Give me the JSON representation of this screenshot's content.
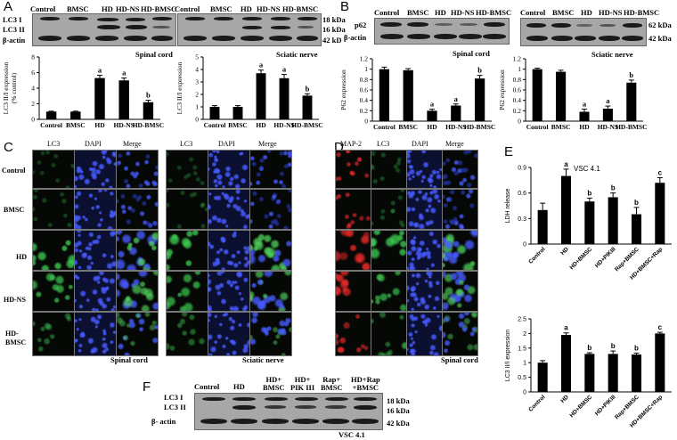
{
  "panel_labels": [
    "A",
    "B",
    "C",
    "D",
    "E",
    "F"
  ],
  "A": {
    "blot1": {
      "lanes": [
        "Control",
        "BMSC",
        "HD",
        "HD-NS",
        "HD-BMSC"
      ],
      "rows": [
        "LC3 I",
        "LC3 II",
        "β-actin"
      ],
      "caption": "Spinal cord"
    },
    "blot2": {
      "lanes": [
        "Control",
        "BMSC",
        "HD",
        "HD-NS",
        "HD-BMSC"
      ],
      "sizes": [
        "18 kDa",
        "16 kDa",
        "42 kD"
      ],
      "caption": "Sciatic nerve"
    }
  },
  "B": {
    "blot1": {
      "lanes": [
        "Control",
        "BMSC",
        "HD",
        "HD-NS",
        "HD-BMSC"
      ],
      "rows": [
        "p62",
        "β-actin"
      ],
      "caption": "Spinal cord"
    },
    "blot2": {
      "lanes": [
        "Control",
        "BMSC",
        "HD",
        "HD-NS",
        "HD-BMSC"
      ],
      "sizes": [
        "62 kDa",
        "42 kDa"
      ],
      "caption": "Sciatic nerve"
    }
  },
  "C": {
    "cols": [
      "LC3",
      "DAPI",
      "Merge"
    ],
    "rows": [
      "Control",
      "BMSC",
      "HD",
      "HD-NS",
      "HD-\nBMSC"
    ],
    "caption_left": "Spinal cord",
    "caption_right": "Sciatic nerve"
  },
  "D": {
    "cols": [
      "MAP-2",
      "LC3",
      "DAPI",
      "Merge"
    ],
    "caption": "Spinal cord"
  },
  "E": {
    "title": "VSC 4.1"
  },
  "F": {
    "lanes": [
      "Control",
      "HD",
      "HD+\nBMSC",
      "HD+\nPIK III",
      "Rap+\nBMSC",
      "HD+Rap\n+BMSC"
    ],
    "rows": [
      "LC3 I",
      "LC3 II",
      "β- actin"
    ],
    "sizes": [
      "18 kDa",
      "16 kDa",
      "42 kDa"
    ],
    "caption": "VSC 4.1"
  },
  "chart_data": [
    {
      "id": "A-spinal",
      "type": "bar",
      "categories": [
        "Control",
        "BMSC",
        "HD",
        "HD-NS",
        "HD-BMSC"
      ],
      "values": [
        1.0,
        1.0,
        5.3,
        5.0,
        2.2
      ],
      "errors": [
        0.05,
        0.05,
        0.35,
        0.3,
        0.25
      ],
      "sig": [
        "",
        "",
        "a",
        "a",
        "b"
      ],
      "ylabel": "LC3 II/I expression\n(% control)",
      "ylim": [
        0,
        8
      ],
      "yticks": [
        0,
        2,
        4,
        6,
        8
      ]
    },
    {
      "id": "A-sciatic",
      "type": "bar",
      "categories": [
        "Control",
        "BMSC",
        "HD",
        "HD-NS",
        "HD-BMSC"
      ],
      "values": [
        1.0,
        1.0,
        3.7,
        3.3,
        1.9
      ],
      "errors": [
        0.1,
        0.1,
        0.25,
        0.3,
        0.15
      ],
      "sig": [
        "",
        "",
        "a",
        "a",
        "b"
      ],
      "ylabel": "LC3 II/I expression",
      "ylim": [
        0,
        5
      ],
      "yticks": [
        0,
        1,
        2,
        3,
        4,
        5
      ]
    },
    {
      "id": "B-spinal",
      "type": "bar",
      "categories": [
        "Control",
        "BMSC",
        "HD",
        "HD-NS",
        "HD-BMSC"
      ],
      "values": [
        1.0,
        0.98,
        0.2,
        0.3,
        0.82
      ],
      "errors": [
        0.04,
        0.03,
        0.03,
        0.03,
        0.06
      ],
      "sig": [
        "",
        "",
        "a",
        "a",
        "b"
      ],
      "ylabel": "P62 expression",
      "ylim": [
        0,
        1.2
      ],
      "yticks": [
        0,
        0.2,
        0.4,
        0.6,
        0.8,
        1.0,
        1.2
      ]
    },
    {
      "id": "B-sciatic",
      "type": "bar",
      "categories": [
        "Control",
        "BMSC",
        "HD",
        "HD-NS",
        "HD-BMSC"
      ],
      "values": [
        1.0,
        0.95,
        0.18,
        0.24,
        0.74
      ],
      "errors": [
        0.02,
        0.03,
        0.05,
        0.05,
        0.05
      ],
      "sig": [
        "",
        "",
        "a",
        "a",
        "b"
      ],
      "ylabel": "P62 expression",
      "ylim": [
        0,
        1.2
      ],
      "yticks": [
        0,
        0.2,
        0.4,
        0.6,
        0.8,
        1.0,
        1.2
      ]
    },
    {
      "id": "E-LDH",
      "type": "bar",
      "categories": [
        "Control",
        "HD",
        "HD+BMSC",
        "HD+PIKIII",
        "Rap+BMSC",
        "HD+BMSC+Rap"
      ],
      "values": [
        0.4,
        0.8,
        0.5,
        0.55,
        0.35,
        0.72
      ],
      "errors": [
        0.08,
        0.08,
        0.04,
        0.05,
        0.08,
        0.06
      ],
      "sig": [
        "",
        "a",
        "b",
        "b",
        "b",
        "c"
      ],
      "ylabel": "LDH release",
      "ylim": [
        0,
        0.9
      ],
      "yticks": [
        0,
        0.3,
        0.6,
        0.9
      ]
    },
    {
      "id": "E-LC3",
      "type": "bar",
      "categories": [
        "Control",
        "HD",
        "HD+BMSC",
        "HD+PIKIII",
        "Rap+BMSC",
        "HD+BMSC+Rap"
      ],
      "values": [
        1.0,
        1.95,
        1.3,
        1.3,
        1.28,
        2.0
      ],
      "errors": [
        0.07,
        0.07,
        0.04,
        0.1,
        0.05,
        0.04
      ],
      "sig": [
        "",
        "a",
        "b",
        "b",
        "b",
        "c"
      ],
      "ylabel": "LC3 II/I expression",
      "ylim": [
        0,
        2.5
      ],
      "yticks": [
        0,
        0.5,
        1.0,
        1.5,
        2.0,
        2.5
      ]
    }
  ]
}
